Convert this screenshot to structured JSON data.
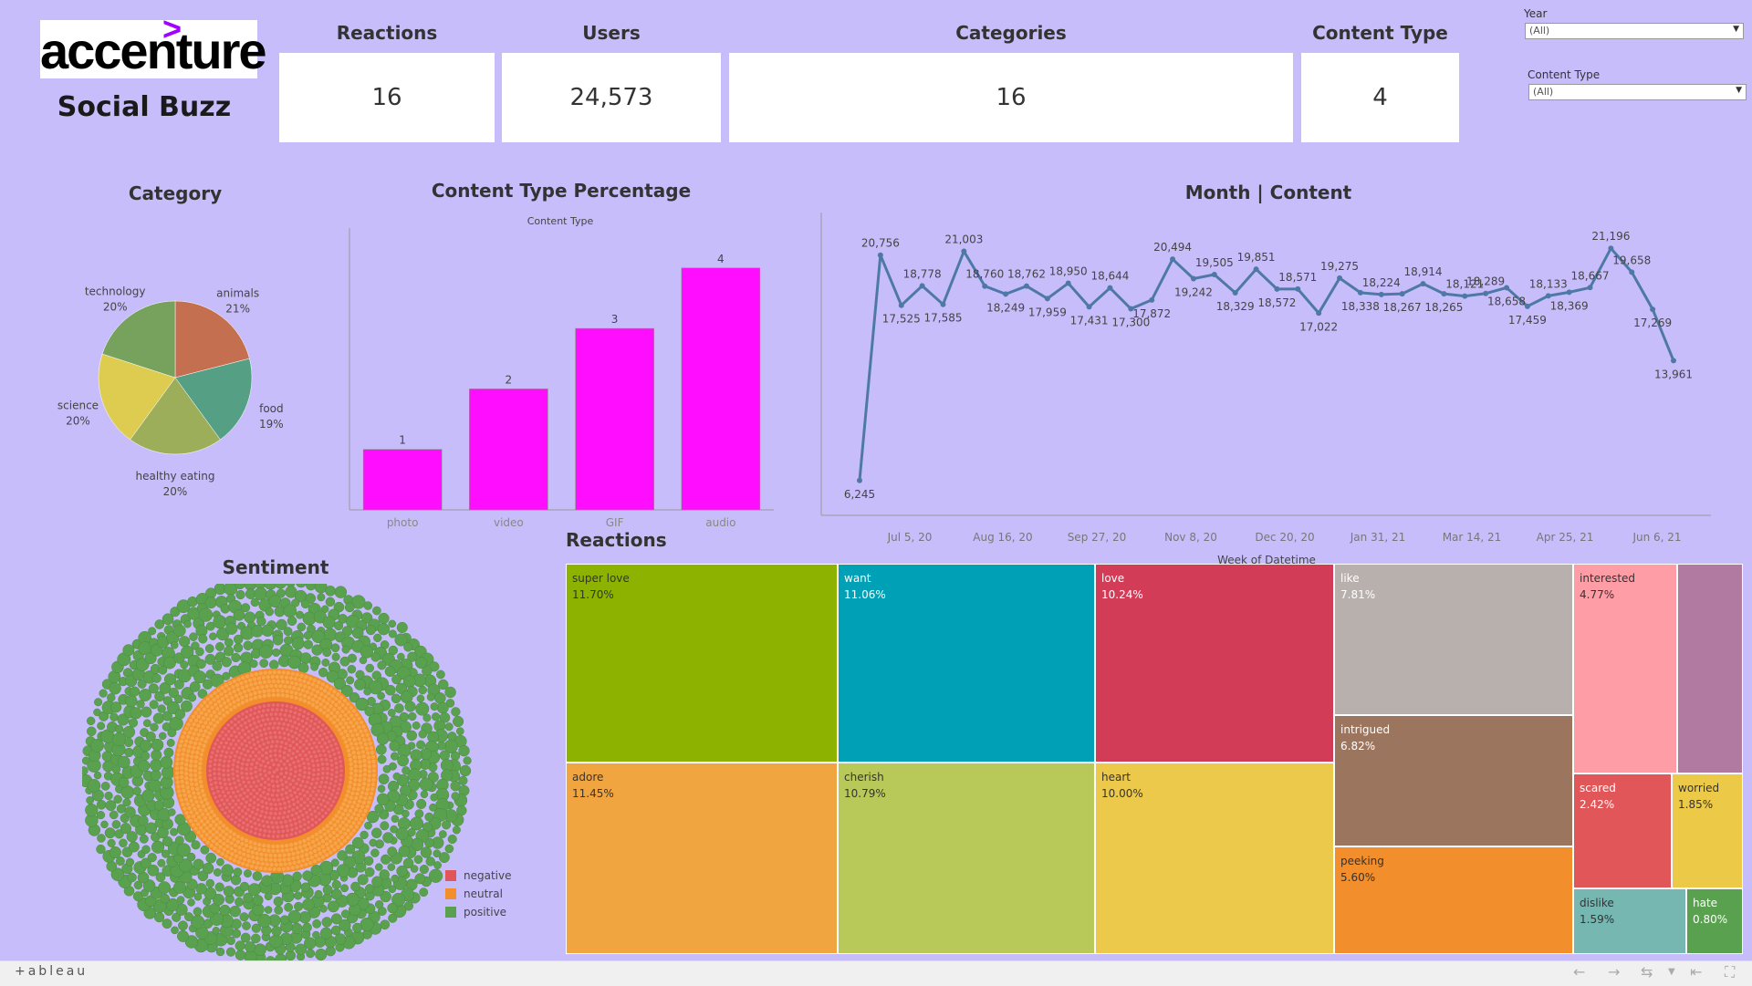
{
  "header": {
    "logo_text": "accenture",
    "logo_mark": ">",
    "subtitle": "Social Buzz"
  },
  "kpis": [
    {
      "title": "Reactions",
      "value": "16"
    },
    {
      "title": "Users",
      "value": "24,573"
    },
    {
      "title": "Categories",
      "value": "16"
    },
    {
      "title": "Content Type",
      "value": "4"
    }
  ],
  "filters": {
    "year": {
      "label": "Year",
      "value": "(All)"
    },
    "content_type": {
      "label": "Content Type",
      "value": "(All)"
    }
  },
  "sections": {
    "category": "Category",
    "content_type_pct": "Content Type Percentage",
    "month_content": "Month | Content",
    "sentiment": "Sentiment",
    "reactions": "Reactions"
  },
  "chart_data": [
    {
      "type": "pie",
      "title": "Category",
      "slices": [
        {
          "label": "animals",
          "pct": "21%",
          "value": 21,
          "color": "#c46f4f"
        },
        {
          "label": "food",
          "pct": "19%",
          "value": 19,
          "color": "#55a085"
        },
        {
          "label": "healthy eating",
          "pct": "20%",
          "value": 20,
          "color": "#9dae5a"
        },
        {
          "label": "science",
          "pct": "20%",
          "value": 20,
          "color": "#ddcc4f"
        },
        {
          "label": "technology",
          "pct": "20%",
          "value": 20,
          "color": "#76a25e"
        }
      ]
    },
    {
      "type": "bar",
      "title": "Content Type Percentage",
      "xlabel": "Content Type",
      "categories": [
        "photo",
        "video",
        "GIF",
        "audio"
      ],
      "values": [
        1,
        2,
        3,
        4
      ],
      "ylim": [
        0,
        4.6
      ],
      "color": "#ff0dff"
    },
    {
      "type": "line",
      "title": "Month | Content",
      "xlabel": "Week of Datetime",
      "x_ticks": [
        "Jul 5, 20",
        "Aug 16, 20",
        "Sep 27, 20",
        "Nov 8, 20",
        "Dec 20, 20",
        "Jan 31, 21",
        "Mar 14, 21",
        "Apr 25, 21",
        "Jun 6, 21"
      ],
      "values": [
        6245,
        20756,
        17525,
        18778,
        17585,
        21003,
        18760,
        18249,
        18762,
        17959,
        18950,
        17431,
        18644,
        17300,
        17872,
        20494,
        19242,
        19505,
        18329,
        19851,
        18572,
        18571,
        17022,
        19275,
        18338,
        18224,
        18267,
        18914,
        18265,
        18121,
        18289,
        18658,
        17459,
        18133,
        18369,
        18667,
        21196,
        19658,
        17269,
        13961
      ],
      "labels": [
        "6,245",
        "20,756",
        "17,525",
        "18,778",
        "17,585",
        "21,003",
        "18,760",
        "18,249",
        "18,762",
        "17,959",
        "18,950",
        "17,431",
        "18,644",
        "17,300",
        "17,872",
        "20,494",
        "19,242",
        "19,505",
        "18,329",
        "19,851",
        "18,572",
        "18,571",
        "17,022",
        "19,275",
        "18,338",
        "18,224",
        "18,267",
        "18,914",
        "18,265",
        "18,121",
        "18,289",
        "18,658",
        "17,459",
        "18,133",
        "18,369",
        "18,667",
        "21,196",
        "19,658",
        "17,269",
        "13,961"
      ],
      "label_pos": [
        "below",
        "above",
        "below",
        "above",
        "below",
        "above",
        "above",
        "below",
        "above",
        "below",
        "above",
        "below",
        "above",
        "below",
        "below",
        "above",
        "below",
        "above",
        "below",
        "above",
        "below",
        "above",
        "below",
        "above",
        "below",
        "above",
        "below",
        "above",
        "below",
        "above",
        "above",
        "below",
        "below",
        "above",
        "below",
        "above",
        "above",
        "above",
        "below",
        "below"
      ],
      "ylim": [
        4000,
        23500
      ],
      "color": "#4e79a7"
    },
    {
      "type": "scatter",
      "title": "Sentiment",
      "legend": [
        {
          "label": "negative",
          "color": "#e15759"
        },
        {
          "label": "neutral",
          "color": "#f28e2b"
        },
        {
          "label": "positive",
          "color": "#59a14f"
        }
      ]
    },
    {
      "type": "treemap",
      "title": "Reactions",
      "cells": [
        {
          "label": "super love",
          "pct": "11.70%",
          "color": "#8db300",
          "dark": true
        },
        {
          "label": "want",
          "pct": "11.06%",
          "color": "#00a1b6",
          "dark": false
        },
        {
          "label": "love",
          "pct": "10.24%",
          "color": "#d33c56",
          "dark": false
        },
        {
          "label": "like",
          "pct": "7.81%",
          "color": "#b8b0ac",
          "dark": false
        },
        {
          "label": "interested",
          "pct": "4.77%",
          "color": "#ff9da7",
          "dark": true
        },
        {
          "label": "",
          "pct": "",
          "color": "#b07aa1",
          "dark": false
        },
        {
          "label": "adore",
          "pct": "11.45%",
          "color": "#f0a541",
          "dark": true
        },
        {
          "label": "cherish",
          "pct": "10.79%",
          "color": "#b8c95a",
          "dark": true
        },
        {
          "label": "heart",
          "pct": "10.00%",
          "color": "#ecc94b",
          "dark": true
        },
        {
          "label": "intrigued",
          "pct": "6.82%",
          "color": "#9c755f",
          "dark": false
        },
        {
          "label": "peeking",
          "pct": "5.60%",
          "color": "#f28e2b",
          "dark": true
        },
        {
          "label": "scared",
          "pct": "2.42%",
          "color": "#e15759",
          "dark": false
        },
        {
          "label": "worried",
          "pct": "1.85%",
          "color": "#edc948",
          "dark": true
        },
        {
          "label": "dislike",
          "pct": "1.59%",
          "color": "#76b7b2",
          "dark": true
        },
        {
          "label": "hate",
          "pct": "0.80%",
          "color": "#59a14f",
          "dark": false
        }
      ]
    }
  ],
  "footer": {
    "brand": "+ableau"
  }
}
